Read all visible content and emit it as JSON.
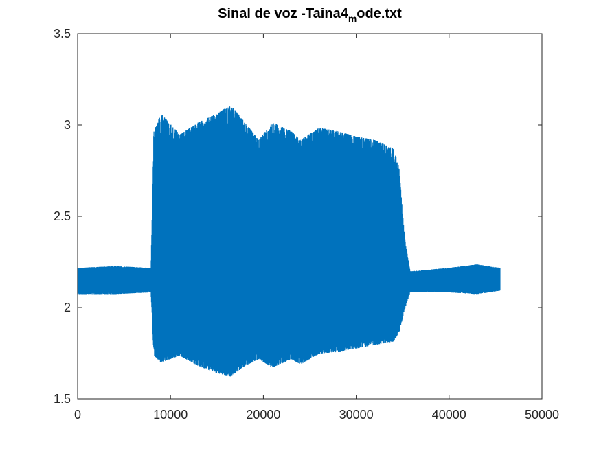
{
  "chart_data": {
    "type": "line",
    "title": {
      "main": "Sinal de voz -Taina4",
      "subscript": "m",
      "suffix": "ode.txt"
    },
    "xlabel": "",
    "ylabel": "",
    "xlim": [
      0,
      50000
    ],
    "ylim": [
      1.5,
      3.5
    ],
    "x_ticks": [
      0,
      10000,
      20000,
      30000,
      40000,
      50000
    ],
    "y_ticks": [
      1.5,
      2,
      2.5,
      3,
      3.5
    ],
    "x_tick_labels": [
      "0",
      "10000",
      "20000",
      "30000",
      "40000",
      "50000"
    ],
    "y_tick_labels": [
      "1.5",
      "2",
      "2.5",
      "3",
      "3.5"
    ],
    "grid": false,
    "legend": "none",
    "series_color": "#0072BD",
    "series": [
      {
        "n_samples": 45500,
        "baseline": 2.15,
        "envelope": {
          "x": [
            0,
            4000,
            7900,
            8200,
            9000,
            11000,
            13000,
            15000,
            16500,
            18000,
            19500,
            21000,
            23000,
            24000,
            26000,
            28000,
            30000,
            32000,
            34000,
            34600,
            35200,
            35800,
            40000,
            43000,
            45500
          ],
          "upper": [
            2.22,
            2.23,
            2.22,
            3.0,
            3.1,
            2.98,
            3.05,
            3.1,
            3.15,
            3.05,
            2.95,
            3.05,
            3.0,
            2.95,
            3.02,
            3.0,
            2.97,
            2.95,
            2.9,
            2.8,
            2.4,
            2.2,
            2.22,
            2.24,
            2.22
          ],
          "lower": [
            2.07,
            2.07,
            2.08,
            1.72,
            1.68,
            1.72,
            1.66,
            1.62,
            1.6,
            1.66,
            1.7,
            1.65,
            1.7,
            1.67,
            1.73,
            1.74,
            1.76,
            1.78,
            1.8,
            1.85,
            1.98,
            2.08,
            2.08,
            2.07,
            2.09
          ]
        }
      }
    ]
  }
}
